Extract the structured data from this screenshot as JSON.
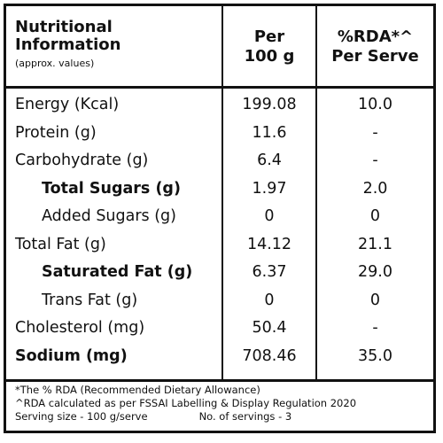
{
  "header": {
    "title_line1": "Nutritional",
    "title_line2": "Information",
    "subtitle": "(approx. values)",
    "col_per_line1": "Per",
    "col_per_line2": "100 g",
    "col_rda_line1": "%RDA*^",
    "col_rda_line2": "Per Serve"
  },
  "rows": [
    {
      "name": "Energy (Kcal)",
      "per100": "199.08",
      "rda": "10.0"
    },
    {
      "name": "Protein (g)",
      "per100": "11.6",
      "rda": "-"
    },
    {
      "name": "Carbohydrate (g)",
      "per100": "6.4",
      "rda": "-"
    },
    {
      "name": "Total Sugars (g)",
      "per100": "1.97",
      "rda": "2.0"
    },
    {
      "name": "Added Sugars (g)",
      "per100": "0",
      "rda": "0"
    },
    {
      "name": "Total Fat (g)",
      "per100": "14.12",
      "rda": "21.1"
    },
    {
      "name": "Saturated Fat (g)",
      "per100": "6.37",
      "rda": "29.0"
    },
    {
      "name": "Trans Fat (g)",
      "per100": "0",
      "rda": "0"
    },
    {
      "name": "Cholesterol (mg)",
      "per100": "50.4",
      "rda": "-"
    },
    {
      "name": "Sodium (mg)",
      "per100": "708.46",
      "rda": "35.0"
    }
  ],
  "footer": {
    "note1": "*The % RDA (Recommended Dietary Allowance)",
    "note2": "^RDA calculated as per FSSAI Labelling & Display Regulation 2020",
    "serving_size": "Serving size - 100 g/serve",
    "servings_count": "No. of servings - 3"
  }
}
